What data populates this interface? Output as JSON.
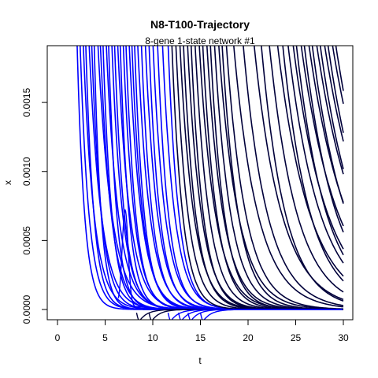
{
  "chart_data": {
    "type": "line",
    "title": "N8-T100-Trajectory",
    "subtitle": "8-gene 1-state network #1",
    "xlabel": "t",
    "ylabel": "x",
    "xlim": [
      0,
      30
    ],
    "ylim": [
      0,
      0.0019
    ],
    "xticks": [
      0,
      5,
      10,
      15,
      20,
      25,
      30
    ],
    "xtick_labels": [
      "0",
      "5",
      "10",
      "15",
      "20",
      "25",
      "30"
    ],
    "yticks": [
      0.0,
      0.0005,
      0.001,
      0.0015
    ],
    "ytick_labels": [
      "0.0000",
      "0.0005",
      "0.0010",
      "0.0015"
    ],
    "grid": false,
    "legend": "none",
    "series": [
      {
        "color": "#0000ff",
        "description_values": "decaying trajectories crossing the top of the plot between t≈2 and t≈12, settling near 0",
        "lines": [
          {
            "t_cross": 2.1,
            "rate": 1.3
          },
          {
            "t_cross": 2.4,
            "rate": 1.1
          },
          {
            "t_cross": 2.7,
            "rate": 0.9
          },
          {
            "t_cross": 3.0,
            "rate": 1.2
          },
          {
            "t_cross": 3.3,
            "rate": 0.8
          },
          {
            "t_cross": 3.6,
            "rate": 1.0
          },
          {
            "t_cross": 3.9,
            "rate": 1.4
          },
          {
            "t_cross": 4.2,
            "rate": 0.7
          },
          {
            "t_cross": 4.5,
            "rate": 0.9
          },
          {
            "t_cross": 4.8,
            "rate": 1.1
          },
          {
            "t_cross": 5.1,
            "rate": 0.8
          },
          {
            "t_cross": 5.4,
            "rate": 1.2
          },
          {
            "t_cross": 5.7,
            "rate": 0.9
          },
          {
            "t_cross": 6.0,
            "rate": 1.0
          },
          {
            "t_cross": 6.3,
            "rate": 0.8
          },
          {
            "t_cross": 6.6,
            "rate": 1.1
          },
          {
            "t_cross": 6.9,
            "rate": 0.9
          },
          {
            "t_cross": 7.2,
            "rate": 1.0
          },
          {
            "t_cross": 7.5,
            "rate": 0.8
          },
          {
            "t_cross": 7.8,
            "rate": 0.9
          },
          {
            "t_cross": 8.1,
            "rate": 1.0
          },
          {
            "t_cross": 8.4,
            "rate": 0.8
          },
          {
            "t_cross": 8.8,
            "rate": 0.9
          },
          {
            "t_cross": 9.2,
            "rate": 0.8
          },
          {
            "t_cross": 9.6,
            "rate": 0.9
          },
          {
            "t_cross": 10.0,
            "rate": 0.8
          },
          {
            "t_cross": 10.5,
            "rate": 0.9
          },
          {
            "t_cross": 11.0,
            "rate": 0.8
          },
          {
            "t_cross": 11.6,
            "rate": 0.9
          }
        ]
      },
      {
        "color": "#00003a",
        "description_values": "decaying trajectories crossing the top of the plot between t≈12 and t≈29, settling near 0",
        "lines": [
          {
            "t_cross": 12.0,
            "rate": 0.9
          },
          {
            "t_cross": 12.4,
            "rate": 0.8
          },
          {
            "t_cross": 12.8,
            "rate": 0.7
          },
          {
            "t_cross": 13.2,
            "rate": 0.8
          },
          {
            "t_cross": 13.6,
            "rate": 0.7
          },
          {
            "t_cross": 14.0,
            "rate": 0.8
          },
          {
            "t_cross": 14.4,
            "rate": 0.7
          },
          {
            "t_cross": 14.8,
            "rate": 0.6
          },
          {
            "t_cross": 15.2,
            "rate": 0.7
          },
          {
            "t_cross": 15.6,
            "rate": 0.6
          },
          {
            "t_cross": 16.0,
            "rate": 0.7
          },
          {
            "t_cross": 16.4,
            "rate": 0.6
          },
          {
            "t_cross": 16.8,
            "rate": 0.5
          },
          {
            "t_cross": 17.2,
            "rate": 0.6
          },
          {
            "t_cross": 17.6,
            "rate": 0.5
          },
          {
            "t_cross": 18.3,
            "rate": 0.4
          },
          {
            "t_cross": 19.3,
            "rate": 0.4
          },
          {
            "t_cross": 20.4,
            "rate": 0.35
          },
          {
            "t_cross": 21.2,
            "rate": 0.4
          },
          {
            "t_cross": 22.0,
            "rate": 0.35
          },
          {
            "t_cross": 22.8,
            "rate": 0.3
          },
          {
            "t_cross": 23.4,
            "rate": 0.35
          },
          {
            "t_cross": 23.9,
            "rate": 0.3
          },
          {
            "t_cross": 24.4,
            "rate": 0.28
          },
          {
            "t_cross": 24.8,
            "rate": 0.32
          },
          {
            "t_cross": 25.2,
            "rate": 0.26
          },
          {
            "t_cross": 25.6,
            "rate": 0.3
          },
          {
            "t_cross": 26.0,
            "rate": 0.25
          },
          {
            "t_cross": 26.4,
            "rate": 0.28
          },
          {
            "t_cross": 26.8,
            "rate": 0.24
          },
          {
            "t_cross": 27.2,
            "rate": 0.26
          },
          {
            "t_cross": 27.6,
            "rate": 0.23
          },
          {
            "t_cross": 28.0,
            "rate": 0.25
          },
          {
            "t_cross": 28.4,
            "rate": 0.22
          },
          {
            "t_cross": 28.8,
            "rate": 0.24
          }
        ]
      }
    ]
  }
}
